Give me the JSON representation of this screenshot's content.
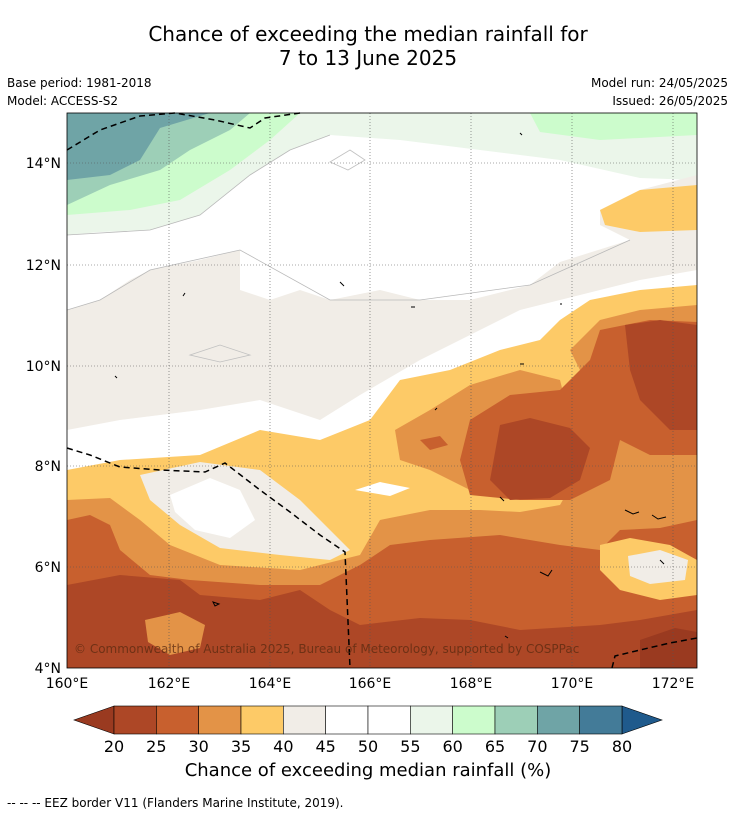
{
  "title_line1": "Chance of exceeding the median rainfall for",
  "title_line2": "7 to 13 June 2025",
  "base_period": "Base period: 1981-2018",
  "model": "Model: ACCESS-S2",
  "model_run": "Model run: 24/05/2025",
  "issued": "Issued: 26/05/2025",
  "copyright": "© Commonwealth of Australia 2025, Bureau of Meteorology, supported by COSPPac",
  "lon_labels": [
    "160°E",
    "162°E",
    "164°E",
    "166°E",
    "168°E",
    "170°E",
    "172°E"
  ],
  "lat_labels": [
    "14°N",
    "12°N",
    "10°N",
    "8°N",
    "6°N",
    "4°N"
  ],
  "colorbar": {
    "title": "Chance of exceeding median rainfall (%)",
    "ticks": [
      "20",
      "25",
      "30",
      "35",
      "40",
      "45",
      "50",
      "55",
      "60",
      "65",
      "70",
      "75",
      "80"
    ],
    "colors": [
      "#ad4726",
      "#c8602e",
      "#e39347",
      "#fdca67",
      "#f1ede7",
      "#ffffff",
      "#ffffff",
      "#ebf6ea",
      "#ccfccc",
      "#9dcfb7",
      "#6fa4a6",
      "#437b98"
    ],
    "under_color": "#9a3a20",
    "over_color": "#1f5a8c"
  },
  "footnote": "--  --  -- EEZ border V11 (Flanders Marine Institute, 2019)."
}
